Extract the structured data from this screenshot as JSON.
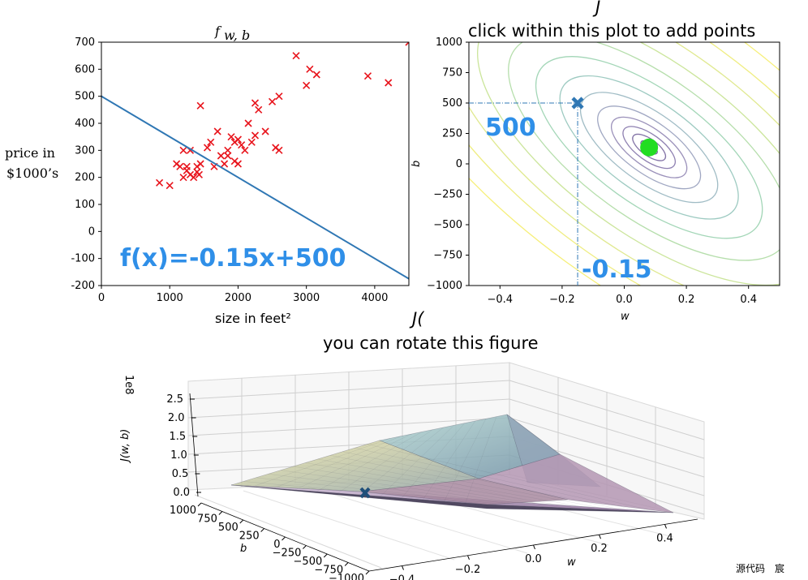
{
  "chart_data": [
    {
      "type": "scatter",
      "title": "f_{w,b}",
      "title_main": "f",
      "title_sub": "w, b",
      "xlabel": "size in feet²",
      "ylabel_line1": "price in",
      "ylabel_line2": "$1000’s",
      "xlim": [
        0,
        4500
      ],
      "ylim": [
        -200,
        700
      ],
      "xticks": [
        "0",
        "1000",
        "2000",
        "3000",
        "4000"
      ],
      "yticks": [
        "700",
        "600",
        "500",
        "400",
        "300",
        "200",
        "100",
        "0",
        "-100",
        "-200"
      ],
      "points_color": "#e8141c",
      "line_color": "#2f77b4",
      "points": [
        [
          850,
          180
        ],
        [
          1000,
          170
        ],
        [
          1100,
          250
        ],
        [
          1150,
          240
        ],
        [
          1200,
          300
        ],
        [
          1200,
          200
        ],
        [
          1250,
          225
        ],
        [
          1250,
          240
        ],
        [
          1300,
          300
        ],
        [
          1300,
          210
        ],
        [
          1350,
          200
        ],
        [
          1400,
          220
        ],
        [
          1400,
          240
        ],
        [
          1430,
          210
        ],
        [
          1450,
          250
        ],
        [
          1450,
          465
        ],
        [
          1550,
          310
        ],
        [
          1600,
          330
        ],
        [
          1650,
          240
        ],
        [
          1700,
          370
        ],
        [
          1750,
          280
        ],
        [
          1800,
          250
        ],
        [
          1850,
          300
        ],
        [
          1850,
          280
        ],
        [
          1900,
          350
        ],
        [
          1950,
          330
        ],
        [
          1950,
          260
        ],
        [
          2000,
          250
        ],
        [
          2000,
          340
        ],
        [
          2050,
          320
        ],
        [
          2100,
          300
        ],
        [
          2150,
          400
        ],
        [
          2200,
          330
        ],
        [
          2250,
          355
        ],
        [
          2250,
          475
        ],
        [
          2300,
          450
        ],
        [
          2400,
          370
        ],
        [
          2500,
          480
        ],
        [
          2550,
          310
        ],
        [
          2600,
          500
        ],
        [
          2600,
          300
        ],
        [
          2850,
          650
        ],
        [
          3000,
          540
        ],
        [
          3050,
          600
        ],
        [
          3150,
          580
        ],
        [
          3900,
          575
        ],
        [
          4200,
          550
        ],
        [
          4500,
          700
        ]
      ],
      "line": {
        "w": -0.15,
        "b": 500
      },
      "annotation": "f(x)=-0.15x+500"
    },
    {
      "type": "contour",
      "title": "J",
      "subtitle": "click within this plot to add points",
      "xlabel": "w",
      "ylabel": "b",
      "xlim": [
        -0.5,
        0.5
      ],
      "ylim": [
        -1000,
        1000
      ],
      "xticks": [
        "−0.4",
        "−0.2",
        "0.0",
        "0.2",
        "0.4"
      ],
      "yticks": [
        "1000",
        "750",
        "500",
        "250",
        "0",
        "−250",
        "−500",
        "−750",
        "−1000"
      ],
      "minimum": {
        "w": 0.08,
        "b": 135,
        "color": "#22dd22"
      },
      "selected_point": {
        "w": -0.15,
        "b": 500,
        "color": "#2f77b4"
      },
      "annotation_b": "500",
      "annotation_w": "-0.15"
    },
    {
      "type": "surface",
      "title": "you can rotate this figure",
      "title_clip": "J(",
      "zlabel": "J(w, b)",
      "z_scale": "1e8",
      "zticks": [
        "2.5",
        "2.0",
        "1.5",
        "1.0",
        "0.5",
        "0.0"
      ],
      "ylabel": "b",
      "yticks": [
        "1000",
        "750",
        "500",
        "250",
        "0",
        "−250",
        "−500",
        "−750",
        "−1000"
      ],
      "xlabel": "w",
      "xticks": [
        "−0.4",
        "−0.2",
        "0.0",
        "0.2",
        "0.4"
      ],
      "marker": {
        "w": -0.15,
        "b": 500
      }
    }
  ],
  "watermark": "源代码　宸"
}
